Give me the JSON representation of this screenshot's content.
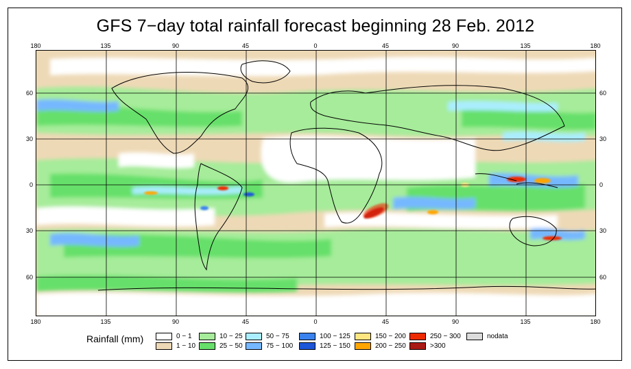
{
  "title": "GFS 7−day total rainfall forecast beginning 28 Feb. 2012",
  "longitude_ticks": [
    "180",
    "135",
    "90",
    "45",
    "0",
    "45",
    "90",
    "135",
    "180"
  ],
  "latitude_ticks": [
    "60",
    "30",
    "0",
    "30",
    "60"
  ],
  "legend": {
    "title": "Rainfall (mm)",
    "items": [
      {
        "label": "0 − 1",
        "color": "#ffffff"
      },
      {
        "label": "1 − 10",
        "color": "#eed9b6"
      },
      {
        "label": "10 − 25",
        "color": "#a6ec9a"
      },
      {
        "label": "25 − 50",
        "color": "#66e06a"
      },
      {
        "label": "50 − 75",
        "color": "#aaeeff"
      },
      {
        "label": "75 − 100",
        "color": "#76b8ff"
      },
      {
        "label": "100 − 125",
        "color": "#3a82ee"
      },
      {
        "label": "125 − 150",
        "color": "#1d56d8"
      },
      {
        "label": "150 − 200",
        "color": "#ffe680"
      },
      {
        "label": "200 − 250",
        "color": "#ffa500"
      },
      {
        "label": "250 − 300",
        "color": "#ee2a00"
      },
      {
        "label": ">300",
        "color": "#aa1a14"
      },
      {
        "label": "nodata",
        "color": "#dcdcdc"
      }
    ]
  }
}
